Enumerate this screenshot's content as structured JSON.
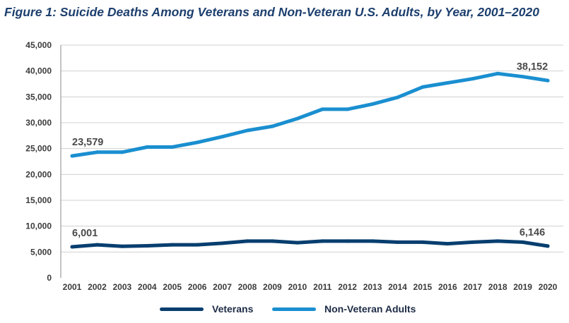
{
  "colors": {
    "veterans": "#073e6f",
    "non_veterans": "#1a8fd0",
    "grid": "#d0d0d0"
  },
  "chart_data": {
    "type": "line",
    "title": "Figure 1: Suicide Deaths Among Veterans and Non-Veteran U.S. Adults, by Year, 2001–2020",
    "xlabel": "",
    "ylabel": "",
    "ylim": [
      0,
      45000
    ],
    "y_ticks": [
      "0",
      "5,000",
      "10,000",
      "15,000",
      "20,000",
      "25,000",
      "30,000",
      "35,000",
      "40,000",
      "45,000"
    ],
    "categories": [
      "2001",
      "2002",
      "2003",
      "2004",
      "2005",
      "2006",
      "2007",
      "2008",
      "2009",
      "2010",
      "2011",
      "2012",
      "2013",
      "2014",
      "2015",
      "2016",
      "2017",
      "2018",
      "2019",
      "2020"
    ],
    "grid": true,
    "legend": "bottom",
    "series": [
      {
        "name": "Veterans",
        "values": [
          6001,
          6400,
          6100,
          6200,
          6400,
          6400,
          6700,
          7100,
          7100,
          6800,
          7100,
          7100,
          7100,
          6900,
          6900,
          6600,
          6900,
          7100,
          6900,
          6146
        ],
        "labels": [
          {
            "index": 0,
            "text": "6,001"
          },
          {
            "index": 19,
            "text": "6,146"
          }
        ]
      },
      {
        "name": "Non-Veteran Adults",
        "values": [
          23579,
          24300,
          24300,
          25300,
          25300,
          26200,
          27300,
          28500,
          29300,
          30800,
          32600,
          32600,
          33600,
          34900,
          36900,
          37700,
          38500,
          39500,
          38900,
          38152
        ],
        "labels": [
          {
            "index": 0,
            "text": "23,579"
          },
          {
            "index": 19,
            "text": "38,152"
          }
        ]
      }
    ]
  }
}
